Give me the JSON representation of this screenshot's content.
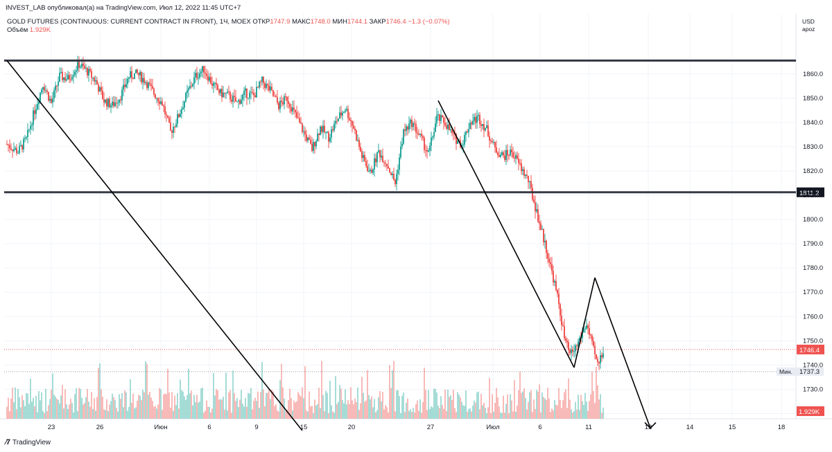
{
  "header": {
    "publisher_line": "INVEST_LAB опубликовал(а) на TradingView.com, Июл 12, 2022 11:45 UTC+7"
  },
  "legend": {
    "symbol": "GOLD FUTURES (CONTINUOUS: CURRENT CONTRACT IN FRONT), 1Ч, MOEX",
    "open_label": "ОТКР",
    "open_value": "1747.9",
    "high_label": "МАКС",
    "high_value": "1748.0",
    "low_label": "МИН",
    "low_value": "1744.1",
    "close_label": "ЗАКР",
    "close_value": "1746.4",
    "change": "−1.3 (−0.07%)"
  },
  "volume_legend": {
    "label": "Объём",
    "value": "1.929K"
  },
  "currency": {
    "code": "USD",
    "mode": "apoz"
  },
  "footer": {
    "brand": "TradingView"
  },
  "colors": {
    "up": "#26a69a",
    "down": "#ef5350",
    "up_volume": "#8fd3cc",
    "down_volume": "#f7a9a7",
    "level_line": "#363a45",
    "last_price_label": "#ef5350",
    "level_label": "#131722"
  },
  "chart_data": {
    "type": "candlestick",
    "x_ticks": [
      "23",
      "26",
      "Июн",
      "6",
      "9",
      "15",
      "20",
      "27",
      "Июл",
      "6",
      "11",
      "13",
      "14",
      "15",
      "18"
    ],
    "y_ticks": [
      1720.0,
      1730.0,
      1740.0,
      1750.0,
      1760.0,
      1770.0,
      1780.0,
      1790.0,
      1800.0,
      1810.0,
      1820.0,
      1830.0,
      1840.0,
      1850.0,
      1860.0
    ],
    "ylim": [
      1713,
      1869
    ],
    "horizontal_levels": [
      {
        "price": 1865.5,
        "label": ""
      },
      {
        "price": 1811.2,
        "label": "1811.2"
      }
    ],
    "last_price": {
      "value": 1746.4,
      "label": "1746.4"
    },
    "session_low": {
      "value": 1737.3,
      "label": "1737.3",
      "prefix": "Мин."
    },
    "volume_last_label": "1.929K",
    "trend_lines": [
      {
        "from": {
          "x_index": 0,
          "price": 1865.5
        },
        "to": {
          "x_index": 213,
          "price": 1713
        }
      },
      {
        "from": {
          "x_index": 311,
          "price": 1849.0
        },
        "to": {
          "x_index": 409,
          "price": 1739.0
        }
      },
      {
        "from": {
          "x_index": 409,
          "price": 1739.0
        },
        "to": {
          "x_index": 424,
          "price": 1776.0
        }
      },
      {
        "from": {
          "x_index": 424,
          "price": 1776.0
        },
        "to": {
          "x_index": 464,
          "price": 1714.0
        }
      }
    ],
    "price_path": [
      [
        0,
        1831
      ],
      [
        8,
        1828
      ],
      [
        14,
        1833
      ],
      [
        20,
        1845
      ],
      [
        26,
        1856
      ],
      [
        32,
        1848
      ],
      [
        38,
        1859
      ],
      [
        44,
        1858
      ],
      [
        52,
        1864
      ],
      [
        58,
        1861
      ],
      [
        64,
        1857
      ],
      [
        70,
        1849
      ],
      [
        76,
        1847
      ],
      [
        82,
        1851
      ],
      [
        88,
        1859
      ],
      [
        94,
        1860
      ],
      [
        100,
        1857
      ],
      [
        106,
        1852
      ],
      [
        112,
        1848
      ],
      [
        118,
        1836
      ],
      [
        124,
        1843
      ],
      [
        130,
        1852
      ],
      [
        136,
        1859
      ],
      [
        142,
        1862
      ],
      [
        148,
        1856
      ],
      [
        154,
        1852
      ],
      [
        160,
        1851
      ],
      [
        166,
        1848
      ],
      [
        172,
        1852
      ],
      [
        178,
        1851
      ],
      [
        184,
        1857
      ],
      [
        190,
        1853
      ],
      [
        196,
        1847
      ],
      [
        202,
        1850
      ],
      [
        208,
        1843
      ],
      [
        214,
        1836
      ],
      [
        220,
        1829
      ],
      [
        226,
        1838
      ],
      [
        232,
        1834
      ],
      [
        238,
        1841
      ],
      [
        244,
        1846
      ],
      [
        250,
        1838
      ],
      [
        256,
        1826
      ],
      [
        262,
        1819
      ],
      [
        268,
        1828
      ],
      [
        274,
        1823
      ],
      [
        280,
        1815
      ],
      [
        286,
        1836
      ],
      [
        292,
        1840
      ],
      [
        298,
        1834
      ],
      [
        304,
        1827
      ],
      [
        310,
        1842
      ],
      [
        316,
        1840
      ],
      [
        322,
        1834
      ],
      [
        328,
        1831
      ],
      [
        334,
        1840
      ],
      [
        340,
        1842
      ],
      [
        346,
        1837
      ],
      [
        352,
        1829
      ],
      [
        358,
        1826
      ],
      [
        364,
        1828
      ],
      [
        370,
        1822
      ],
      [
        376,
        1816
      ],
      [
        382,
        1803
      ],
      [
        388,
        1790
      ],
      [
        394,
        1776
      ],
      [
        398,
        1765
      ],
      [
        402,
        1751
      ],
      [
        406,
        1744
      ],
      [
        410,
        1747
      ],
      [
        414,
        1752
      ],
      [
        418,
        1757
      ],
      [
        422,
        1748
      ],
      [
        426,
        1740
      ],
      [
        430,
        1746.4
      ]
    ]
  }
}
